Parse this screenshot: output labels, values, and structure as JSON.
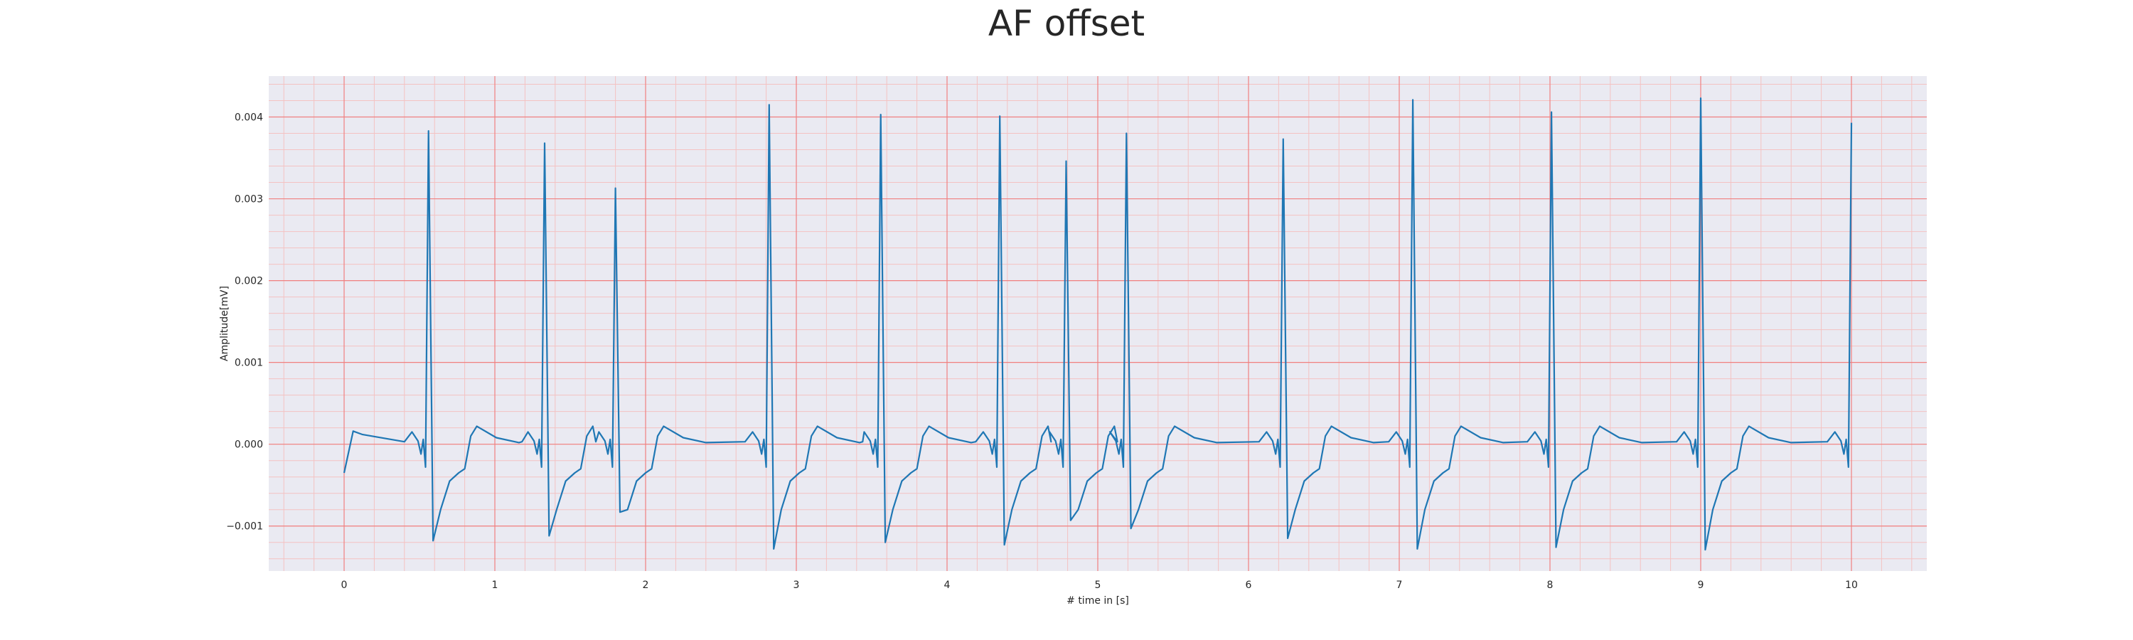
{
  "chart_data": {
    "type": "line",
    "title": "AF offset",
    "xlabel": "# time in [s]",
    "ylabel": "Amplitude[mV]",
    "xlim": [
      -0.5,
      10.5
    ],
    "ylim": [
      -0.00155,
      0.0045
    ],
    "x_ticks": [
      0,
      1,
      2,
      3,
      4,
      5,
      6,
      7,
      8,
      9,
      10
    ],
    "x_tick_labels": [
      "0",
      "1",
      "2",
      "3",
      "4",
      "5",
      "6",
      "7",
      "8",
      "9",
      "10"
    ],
    "y_ticks": [
      -0.001,
      0.0,
      0.001,
      0.002,
      0.003,
      0.004
    ],
    "y_tick_labels": [
      "−0.001",
      "0.000",
      "0.001",
      "0.002",
      "0.003",
      "0.004"
    ],
    "grid": true,
    "minor_grid": true,
    "colors": {
      "line": "#1f77b4",
      "plot_background": "#eaeaf2",
      "major_grid": "#f08080",
      "minor_grid": "#f4c2c2"
    },
    "series": [
      {
        "start": {
          "x": 0.0,
          "y": -0.00035
        },
        "beats": [
          {
            "x": 0.56,
            "r": 0.00383,
            "s": -0.00118
          },
          {
            "x": 1.33,
            "r": 0.00368,
            "s": -0.00112
          },
          {
            "x": 1.8,
            "r": 0.00313,
            "s": -0.00083
          },
          {
            "x": 2.82,
            "r": 0.00415,
            "s": -0.00128
          },
          {
            "x": 3.56,
            "r": 0.00403,
            "s": -0.0012
          },
          {
            "x": 4.35,
            "r": 0.00401,
            "s": -0.00123
          },
          {
            "x": 4.79,
            "r": 0.00346,
            "s": -0.00093
          },
          {
            "x": 5.19,
            "r": 0.0038,
            "s": -0.00103
          },
          {
            "x": 6.23,
            "r": 0.00373,
            "s": -0.00115
          },
          {
            "x": 7.09,
            "r": 0.00421,
            "s": -0.00128
          },
          {
            "x": 8.01,
            "r": 0.00406,
            "s": -0.00126
          },
          {
            "x": 9.0,
            "r": 0.00423,
            "s": -0.00129
          },
          {
            "x": 10.0,
            "r": 0.00393,
            "s": null
          }
        ]
      }
    ]
  }
}
